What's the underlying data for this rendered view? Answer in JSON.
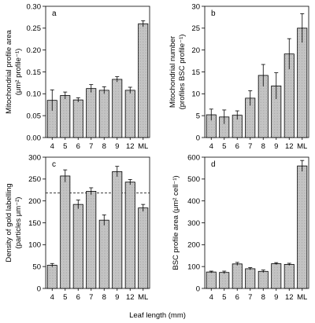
{
  "figure": {
    "xlabel": "Leaf length (mm)"
  },
  "chart_data": [
    {
      "type": "bar",
      "panel": "a",
      "categories": [
        "4",
        "5",
        "6",
        "7",
        "8",
        "9",
        "12",
        "ML"
      ],
      "values": [
        0.085,
        0.096,
        0.086,
        0.112,
        0.108,
        0.133,
        0.108,
        0.26
      ],
      "errors": [
        0.024,
        0.008,
        0.005,
        0.009,
        0.008,
        0.006,
        0.007,
        0.007
      ],
      "ylabel_lines": [
        "Mitochondrial profile area",
        "(μm² profile⁻¹)"
      ],
      "ylim": [
        0,
        0.3
      ],
      "yticks": [
        0.0,
        0.05,
        0.1,
        0.15,
        0.2,
        0.25,
        0.3
      ],
      "ytick_labels": [
        "0.00",
        "0.05",
        "0.10",
        "0.15",
        "0.20",
        "0.25",
        "0.30"
      ],
      "ytick_side": "left"
    },
    {
      "type": "bar",
      "panel": "b",
      "categories": [
        "4",
        "5",
        "6",
        "7",
        "8",
        "9",
        "12",
        "ML"
      ],
      "values": [
        5.2,
        4.7,
        5.1,
        9.0,
        14.2,
        11.8,
        19.1,
        25.0
      ],
      "errors": [
        1.3,
        1.6,
        1.0,
        1.7,
        2.5,
        3.0,
        3.5,
        3.3
      ],
      "ylabel_lines": [
        "Mitochondrial number",
        "(profiles BSC profile⁻¹)"
      ],
      "ylim": [
        0,
        30
      ],
      "yticks": [
        0,
        5,
        10,
        15,
        20,
        25,
        30
      ],
      "ytick_labels": [
        "0",
        "5",
        "10",
        "15",
        "20",
        "25",
        "30"
      ],
      "ytick_side": "right"
    },
    {
      "type": "bar",
      "panel": "c",
      "categories": [
        "4",
        "5",
        "6",
        "7",
        "8",
        "9",
        "12",
        "ML"
      ],
      "values": [
        53,
        257,
        192,
        222,
        156,
        267,
        243,
        184
      ],
      "errors": [
        4,
        14,
        10,
        8,
        12,
        12,
        6,
        8
      ],
      "ylabel_lines": [
        "Density of gold labelling",
        "(particles μm⁻²)"
      ],
      "ylim": [
        0,
        300
      ],
      "yticks": [
        0,
        50,
        100,
        150,
        200,
        250,
        300
      ],
      "ytick_labels": [
        "0",
        "50",
        "100",
        "150",
        "200",
        "250",
        "300"
      ],
      "ytick_side": "left",
      "reference_line": 218
    },
    {
      "type": "bar",
      "panel": "d",
      "categories": [
        "4",
        "5",
        "6",
        "7",
        "8",
        "9",
        "12",
        "ML"
      ],
      "values": [
        75,
        73,
        112,
        90,
        78,
        113,
        110,
        560
      ],
      "errors": [
        4,
        6,
        7,
        5,
        6,
        5,
        5,
        25
      ],
      "ylabel_lines": [
        "BSC profile area (μm² cell⁻¹)"
      ],
      "ylim": [
        0,
        600
      ],
      "yticks": [
        0,
        100,
        200,
        300,
        400,
        500,
        600
      ],
      "ytick_labels": [
        "0",
        "100",
        "200",
        "300",
        "400",
        "500",
        "600"
      ],
      "ytick_side": "right"
    }
  ]
}
